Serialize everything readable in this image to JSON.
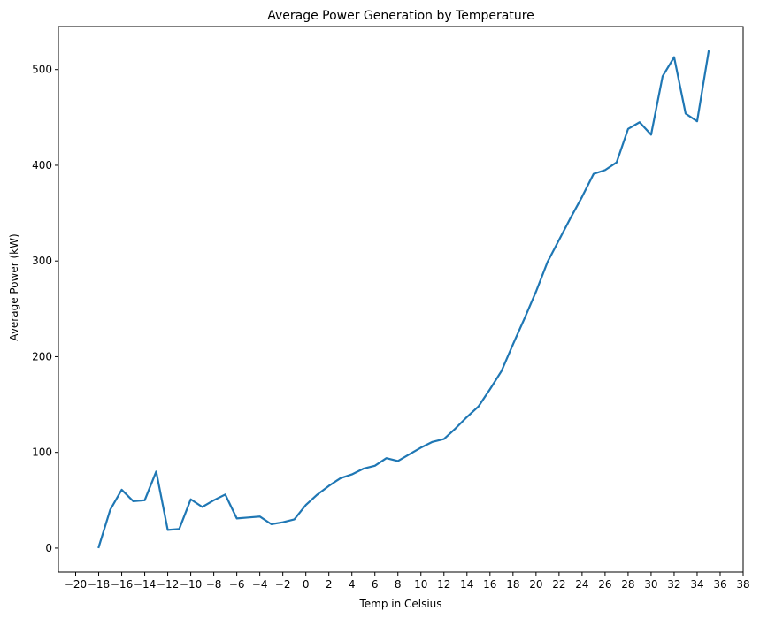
{
  "chart_data": {
    "type": "line",
    "title": "Average Power Generation by Temperature",
    "xlabel": "Temp in Celsius",
    "ylabel": "Average Power (kW)",
    "xlim": [
      -21.5,
      38.0
    ],
    "ylim": [
      -25,
      545
    ],
    "xticks": [
      -20,
      -18,
      -16,
      -14,
      -12,
      -10,
      -8,
      -6,
      -4,
      -2,
      0,
      2,
      4,
      6,
      8,
      10,
      12,
      14,
      16,
      18,
      20,
      22,
      24,
      26,
      28,
      30,
      32,
      34,
      36,
      38
    ],
    "yticks": [
      0,
      100,
      200,
      300,
      400,
      500
    ],
    "grid": false,
    "legend": "none",
    "color": "#1f77b4",
    "series": [
      {
        "x": [
          -18,
          -17,
          -16,
          -15,
          -14,
          -13,
          -12,
          -11,
          -10,
          -9,
          -8,
          -7,
          -6,
          -5,
          -4,
          -3,
          -2,
          -1,
          0,
          1,
          2,
          3,
          4,
          5,
          6,
          7,
          8,
          9,
          10,
          11,
          12,
          13,
          14,
          15,
          16,
          17,
          18,
          19,
          20,
          21,
          22,
          23,
          24,
          25,
          26,
          27,
          28,
          29,
          30,
          31,
          32,
          33,
          34,
          35
        ],
        "y": [
          1,
          40,
          61,
          49,
          50,
          80,
          19,
          20,
          51,
          43,
          50,
          56,
          31,
          32,
          33,
          25,
          27,
          30,
          45,
          56,
          65,
          73,
          77,
          83,
          86,
          94,
          91,
          98,
          105,
          111,
          114,
          125,
          137,
          148,
          166,
          185,
          213,
          240,
          268,
          299,
          322,
          345,
          367,
          391,
          395,
          403,
          438,
          445,
          432,
          493,
          513,
          454,
          446,
          519
        ]
      }
    ]
  }
}
